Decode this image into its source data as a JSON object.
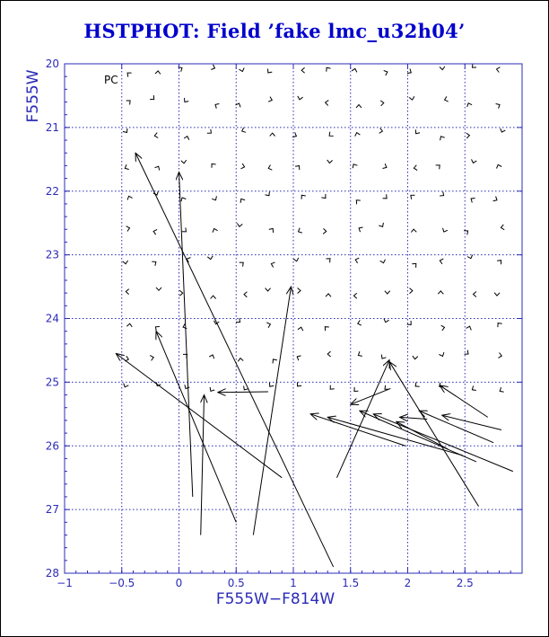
{
  "page": {
    "title": "HSTPHOT: Field ’fake lmc_u32h04’"
  },
  "colors": {
    "title": "#0000cc",
    "axis": "#2b2bb8",
    "grid": "#2b2bb8",
    "vectors": "#000000",
    "background": "#ffffff"
  },
  "chart_data": {
    "type": "scatter",
    "title": "HSTPHOT: Field ’fake lmc_u32h04’",
    "xlabel": "F555W−F814W",
    "ylabel": "F555W",
    "panel_label": "PC",
    "xlim": [
      -1,
      3
    ],
    "ylim": [
      28,
      20
    ],
    "y_inverted": true,
    "grid": true,
    "grid_style": "dotted",
    "x_ticks": [
      -1,
      -0.5,
      0,
      0.5,
      1,
      1.5,
      2,
      2.5
    ],
    "x_tick_labels": [
      "−1",
      "−0.5",
      "0",
      "0.5",
      "1",
      "1.5",
      "2",
      "2.5"
    ],
    "y_ticks": [
      20,
      21,
      22,
      23,
      24,
      25,
      26,
      27,
      28
    ],
    "y_tick_labels": [
      "20",
      "21",
      "22",
      "23",
      "24",
      "25",
      "26",
      "27",
      "28"
    ],
    "vector_grid": {
      "x_start": -0.45,
      "x_step": 0.25,
      "x_count": 14,
      "y_start": 20.1,
      "y_step": 0.5,
      "y_count": 11
    },
    "arrows": [
      {
        "x1": 1.35,
        "y1": 27.9,
        "x2": -0.38,
        "y2": 21.4
      },
      {
        "x1": 0.12,
        "y1": 26.8,
        "x2": 0.0,
        "y2": 21.7
      },
      {
        "x1": 0.5,
        "y1": 27.2,
        "x2": -0.2,
        "y2": 24.2
      },
      {
        "x1": 0.19,
        "y1": 27.4,
        "x2": 0.22,
        "y2": 25.2
      },
      {
        "x1": 0.65,
        "y1": 27.4,
        "x2": 0.98,
        "y2": 23.5
      },
      {
        "x1": 0.9,
        "y1": 26.5,
        "x2": -0.55,
        "y2": 24.55
      },
      {
        "x1": 0.78,
        "y1": 25.15,
        "x2": 0.34,
        "y2": 25.16
      },
      {
        "x1": 1.38,
        "y1": 26.5,
        "x2": 1.84,
        "y2": 24.65
      },
      {
        "x1": 2.62,
        "y1": 26.95,
        "x2": 1.84,
        "y2": 24.68
      },
      {
        "x1": 1.85,
        "y1": 25.1,
        "x2": 1.5,
        "y2": 25.35
      },
      {
        "x1": 1.98,
        "y1": 26.0,
        "x2": 1.15,
        "y2": 25.5
      },
      {
        "x1": 2.48,
        "y1": 26.15,
        "x2": 1.3,
        "y2": 25.55
      },
      {
        "x1": 2.6,
        "y1": 26.25,
        "x2": 1.58,
        "y2": 25.45
      },
      {
        "x1": 2.92,
        "y1": 26.4,
        "x2": 1.7,
        "y2": 25.5
      },
      {
        "x1": 2.35,
        "y1": 26.05,
        "x2": 1.9,
        "y2": 25.62
      },
      {
        "x1": 2.75,
        "y1": 25.95,
        "x2": 2.1,
        "y2": 25.45
      },
      {
        "x1": 2.82,
        "y1": 25.75,
        "x2": 2.3,
        "y2": 25.52
      },
      {
        "x1": 2.7,
        "y1": 25.55,
        "x2": 2.28,
        "y2": 25.05
      },
      {
        "x1": 2.17,
        "y1": 25.58,
        "x2": 1.93,
        "y2": 25.55
      }
    ]
  }
}
